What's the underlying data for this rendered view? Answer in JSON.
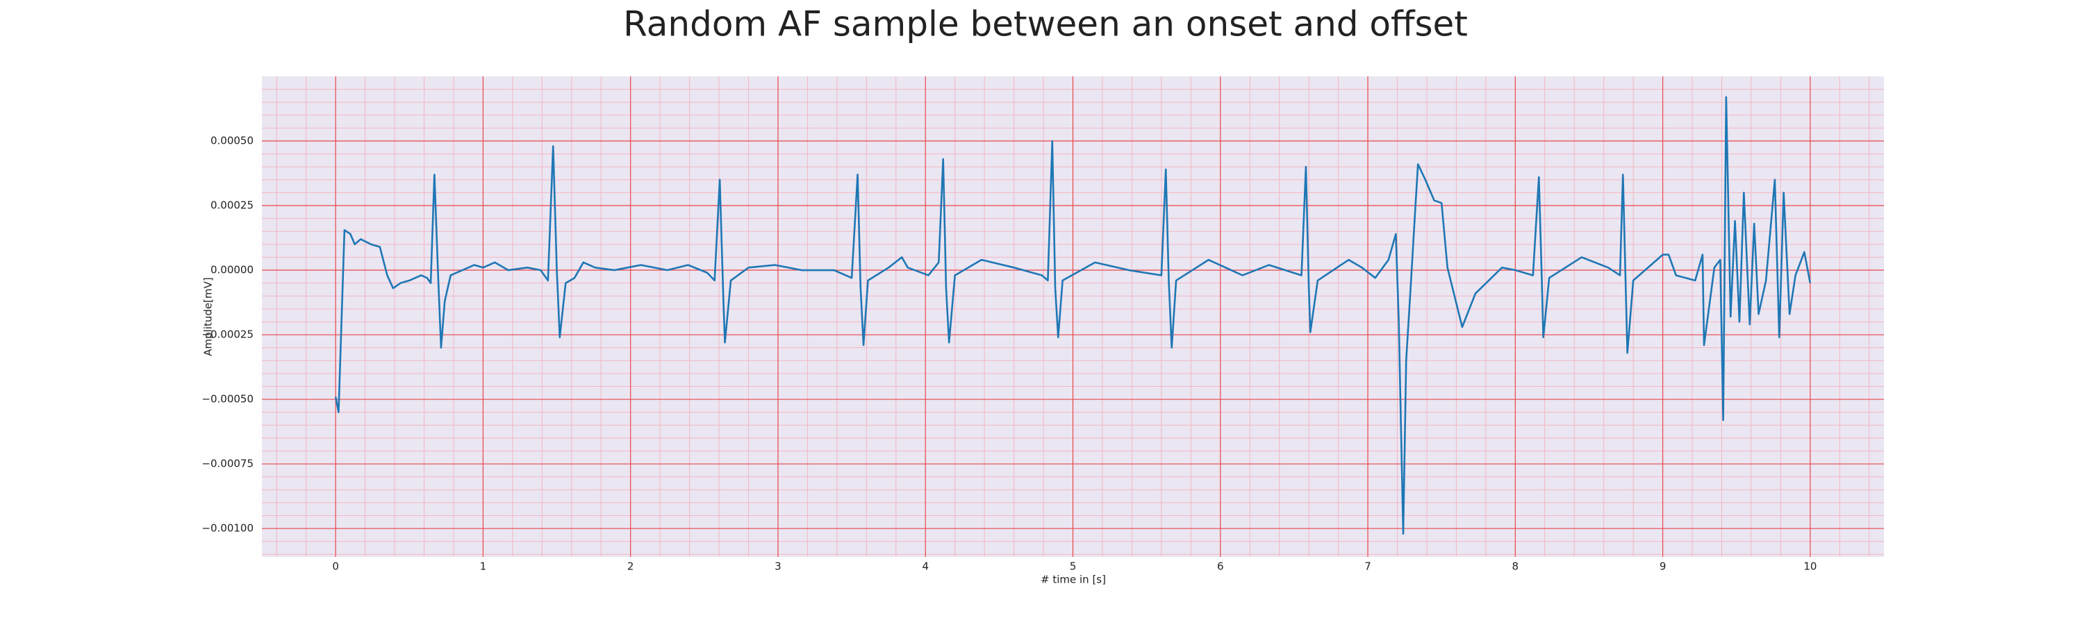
{
  "chart_data": {
    "type": "line",
    "title": "Random AF sample between an onset and offset",
    "x_label": "# time in [s]",
    "y_label": "Amplitude[mV]",
    "color": "#1f77b4",
    "grid": true,
    "minor_grid": true,
    "xlim": [
      -0.5,
      10.5
    ],
    "ylim": [
      -0.00111,
      0.00075
    ],
    "xticks": [
      0,
      1,
      2,
      3,
      4,
      5,
      6,
      7,
      8,
      9,
      10
    ],
    "yticks": [
      {
        "value": -0.001,
        "label": "−0.00100"
      },
      {
        "value": -0.00075,
        "label": "−0.00075"
      },
      {
        "value": -0.0005,
        "label": "−0.00050"
      },
      {
        "value": -0.00025,
        "label": "−0.00025"
      },
      {
        "value": 0,
        "label": "0.00000"
      },
      {
        "value": 0.00025,
        "label": "0.00025"
      },
      {
        "value": 0.0005,
        "label": "0.00050"
      }
    ],
    "x": [
      0,
      0.02,
      0.06,
      0.1,
      0.13,
      0.17,
      0.24,
      0.3,
      0.35,
      0.39,
      0.44,
      0.5,
      0.58,
      0.62,
      0.645,
      0.67,
      0.695,
      0.715,
      0.74,
      0.78,
      0.94,
      1.0,
      1.08,
      1.17,
      1.3,
      1.39,
      1.44,
      1.475,
      1.5,
      1.52,
      1.56,
      1.62,
      1.68,
      1.76,
      1.89,
      2.07,
      2.25,
      2.39,
      2.52,
      2.57,
      2.605,
      2.63,
      2.64,
      2.68,
      2.8,
      2.98,
      3.16,
      3.38,
      3.5,
      3.54,
      3.56,
      3.58,
      3.61,
      3.75,
      3.84,
      3.88,
      4.02,
      4.09,
      4.12,
      4.14,
      4.16,
      4.2,
      4.38,
      4.6,
      4.79,
      4.83,
      4.86,
      4.88,
      4.9,
      4.93,
      5.15,
      5.38,
      5.6,
      5.63,
      5.65,
      5.67,
      5.7,
      5.92,
      6.15,
      6.33,
      6.55,
      6.58,
      6.6,
      6.61,
      6.66,
      6.87,
      6.96,
      7.05,
      7.14,
      7.19,
      7.21,
      7.24,
      7.26,
      7.29,
      7.32,
      7.34,
      7.39,
      7.45,
      7.5,
      7.54,
      7.64,
      7.73,
      7.82,
      7.91,
      8.0,
      8.12,
      8.16,
      8.18,
      8.19,
      8.23,
      8.45,
      8.63,
      8.71,
      8.73,
      8.75,
      8.76,
      8.8,
      9.0,
      9.04,
      9.09,
      9.22,
      9.27,
      9.28,
      9.35,
      9.39,
      9.41,
      9.43,
      9.46,
      9.49,
      9.52,
      9.55,
      9.59,
      9.62,
      9.65,
      9.7,
      9.76,
      9.79,
      9.82,
      9.86,
      9.9,
      9.96,
      10.0
    ],
    "values": [
      -0.00049,
      -0.00055,
      0.000155,
      0.00014,
      0.0001,
      0.00012,
      0.0001,
      9e-05,
      -2e-05,
      -7e-05,
      -5e-05,
      -4e-05,
      -2e-05,
      -3e-05,
      -5e-05,
      0.00037,
      -2e-05,
      -0.0003,
      -0.00012,
      -2e-05,
      2e-05,
      1e-05,
      3e-05,
      0,
      1e-05,
      0,
      -4e-05,
      0.00048,
      0,
      -0.00026,
      -5e-05,
      -3e-05,
      3e-05,
      1e-05,
      0,
      2e-05,
      0,
      2e-05,
      -1e-05,
      -4e-05,
      0.00035,
      -0.00012,
      -0.00028,
      -4e-05,
      1e-05,
      2e-05,
      0,
      0,
      -3e-05,
      0.00037,
      -7e-05,
      -0.00029,
      -4e-05,
      1e-05,
      5e-05,
      1e-05,
      -2e-05,
      3e-05,
      0.00043,
      -7e-05,
      -0.00028,
      -2e-05,
      4e-05,
      1e-05,
      -2e-05,
      -4e-05,
      0.0005,
      -7e-05,
      -0.00026,
      -4e-05,
      3e-05,
      0,
      -2e-05,
      0.00039,
      -4e-05,
      -0.0003,
      -4e-05,
      4e-05,
      -2e-05,
      2e-05,
      -2e-05,
      0.0004,
      -7e-05,
      -0.00024,
      -4e-05,
      4e-05,
      1e-05,
      -3e-05,
      4e-05,
      0.00014,
      -0.0002,
      -0.00102,
      -0.00035,
      -7e-05,
      0.00022,
      0.00041,
      0.00035,
      0.00027,
      0.00026,
      1e-05,
      -0.00022,
      -9e-05,
      -4e-05,
      1e-05,
      0,
      -2e-05,
      0.00036,
      -4e-05,
      -0.00026,
      -3e-05,
      5e-05,
      1e-05,
      -2e-05,
      0.00037,
      -9e-05,
      -0.00032,
      -4e-05,
      6e-05,
      6e-05,
      -2e-05,
      -4e-05,
      6e-05,
      -0.00029,
      1e-05,
      4e-05,
      -0.00058,
      0.00067,
      -0.00018,
      0.00019,
      -0.0002,
      0.0003,
      -0.00021,
      0.00018,
      -0.00017,
      -4e-05,
      0.00035,
      -0.00026,
      0.0003,
      -0.00017,
      -2e-05,
      7e-05,
      -5e-05
    ]
  }
}
